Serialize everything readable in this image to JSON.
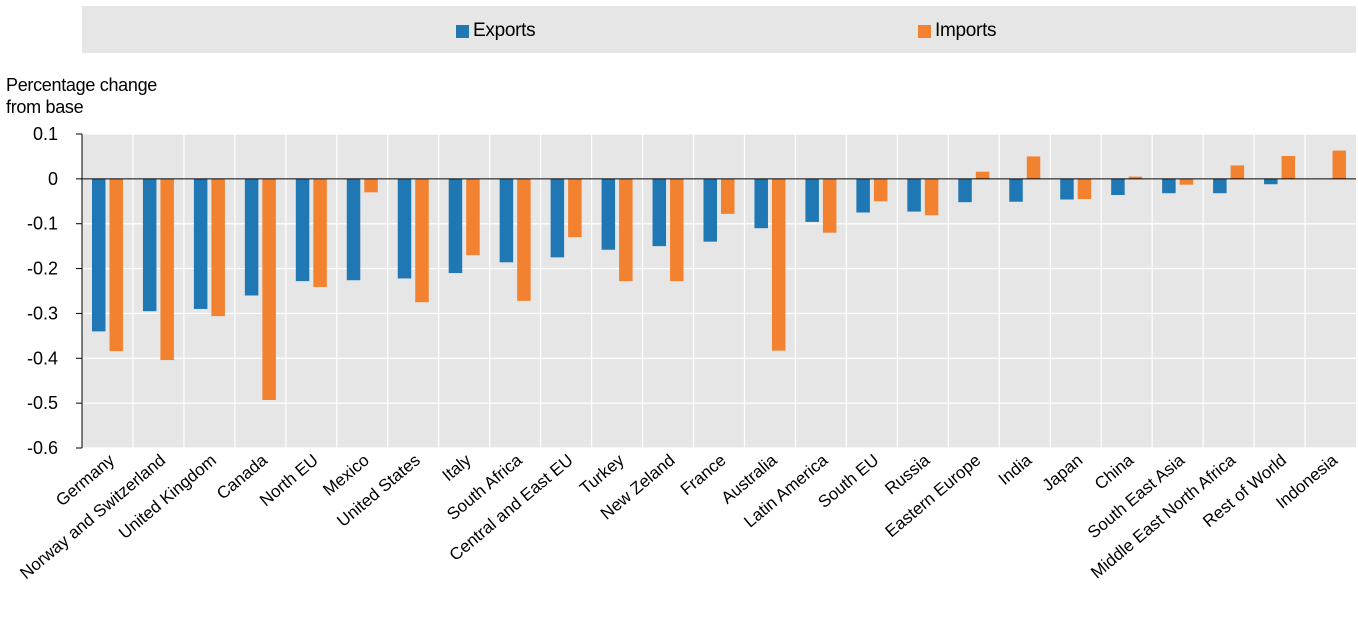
{
  "legend": {
    "exports_label": "Exports",
    "imports_label": "Imports"
  },
  "colors": {
    "exports": "#1f77b4",
    "imports": "#f28230",
    "plot_background": "#e6e6e6",
    "gridline": "#ffffff"
  },
  "chart_data": {
    "type": "bar",
    "ylabel": "Percentage change from base",
    "ylabel_lines": [
      "Percentage change",
      "from base"
    ],
    "ylim": [
      -0.6,
      0.1
    ],
    "yticks": [
      0.1,
      0,
      -0.1,
      -0.2,
      -0.3,
      -0.4,
      -0.5,
      -0.6
    ],
    "ytick_labels": [
      "0.1",
      "0",
      "-0.1",
      "-0.2",
      "-0.3",
      "-0.4",
      "-0.5",
      "-0.6"
    ],
    "grid": true,
    "legend_position": "top",
    "categories": [
      "Germany",
      "Norway and Switzerland",
      "United Kingdom",
      "Canada",
      "North EU",
      "Mexico",
      "United States",
      "Italy",
      "South Africa",
      "Central and East EU",
      "Turkey",
      "New Zeland",
      "France",
      "Australia",
      "Latin America",
      "South EU",
      "Russia",
      "Eastern Europe",
      "India",
      "Japan",
      "China",
      "South East Asia",
      "Middle East North Africa",
      "Rest of World",
      "Indonesia"
    ],
    "series": [
      {
        "name": "Exports",
        "values": [
          -0.34,
          -0.295,
          -0.29,
          -0.26,
          -0.228,
          -0.226,
          -0.222,
          -0.21,
          -0.186,
          -0.175,
          -0.158,
          -0.15,
          -0.14,
          -0.11,
          -0.096,
          -0.075,
          -0.073,
          -0.052,
          -0.051,
          -0.046,
          -0.036,
          -0.032,
          -0.032,
          -0.012,
          0.0
        ]
      },
      {
        "name": "Imports",
        "values": [
          -0.384,
          -0.404,
          -0.306,
          -0.493,
          -0.241,
          -0.03,
          -0.275,
          -0.17,
          -0.272,
          -0.13,
          -0.228,
          -0.228,
          -0.078,
          -0.383,
          -0.12,
          -0.05,
          -0.081,
          0.016,
          0.05,
          -0.045,
          0.005,
          -0.013,
          0.03,
          0.051,
          0.063
        ]
      }
    ]
  }
}
